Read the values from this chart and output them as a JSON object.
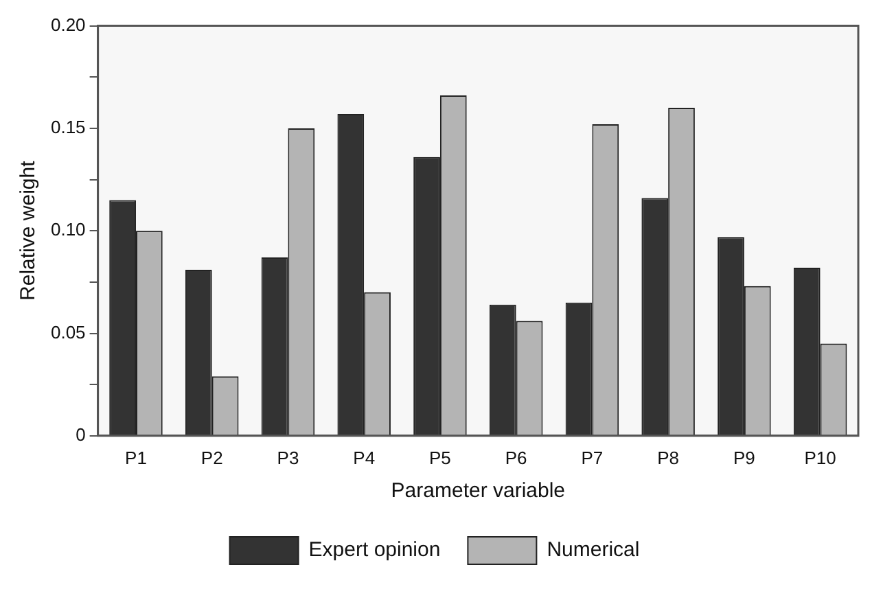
{
  "chart_data": {
    "type": "bar",
    "xlabel": "Parameter variable",
    "ylabel": "Relative weight",
    "categories": [
      "P1",
      "P2",
      "P3",
      "P4",
      "P5",
      "P6",
      "P7",
      "P8",
      "P9",
      "P10"
    ],
    "series": [
      {
        "name": "Expert opinion",
        "color": "#333333",
        "values": [
          0.115,
          0.081,
          0.087,
          0.157,
          0.136,
          0.064,
          0.065,
          0.116,
          0.097,
          0.082
        ]
      },
      {
        "name": "Numerical",
        "color": "#b4b4b4",
        "values": [
          0.1,
          0.029,
          0.15,
          0.07,
          0.166,
          0.056,
          0.152,
          0.16,
          0.073,
          0.045
        ]
      }
    ],
    "ylim": [
      0,
      0.2
    ],
    "yticks": [
      0,
      {
        "value": 0.025,
        "label": null
      },
      {
        "value": 0.05,
        "label": "0.05"
      },
      {
        "value": 0.075,
        "label": null
      },
      {
        "value": 0.1,
        "label": "0.10"
      },
      {
        "value": 0.125,
        "label": null
      },
      {
        "value": 0.15,
        "label": "0.15"
      },
      {
        "value": 0.175,
        "label": null
      },
      {
        "value": 0.2,
        "label": "0.20"
      }
    ],
    "grid": false,
    "legend": "bottom"
  }
}
